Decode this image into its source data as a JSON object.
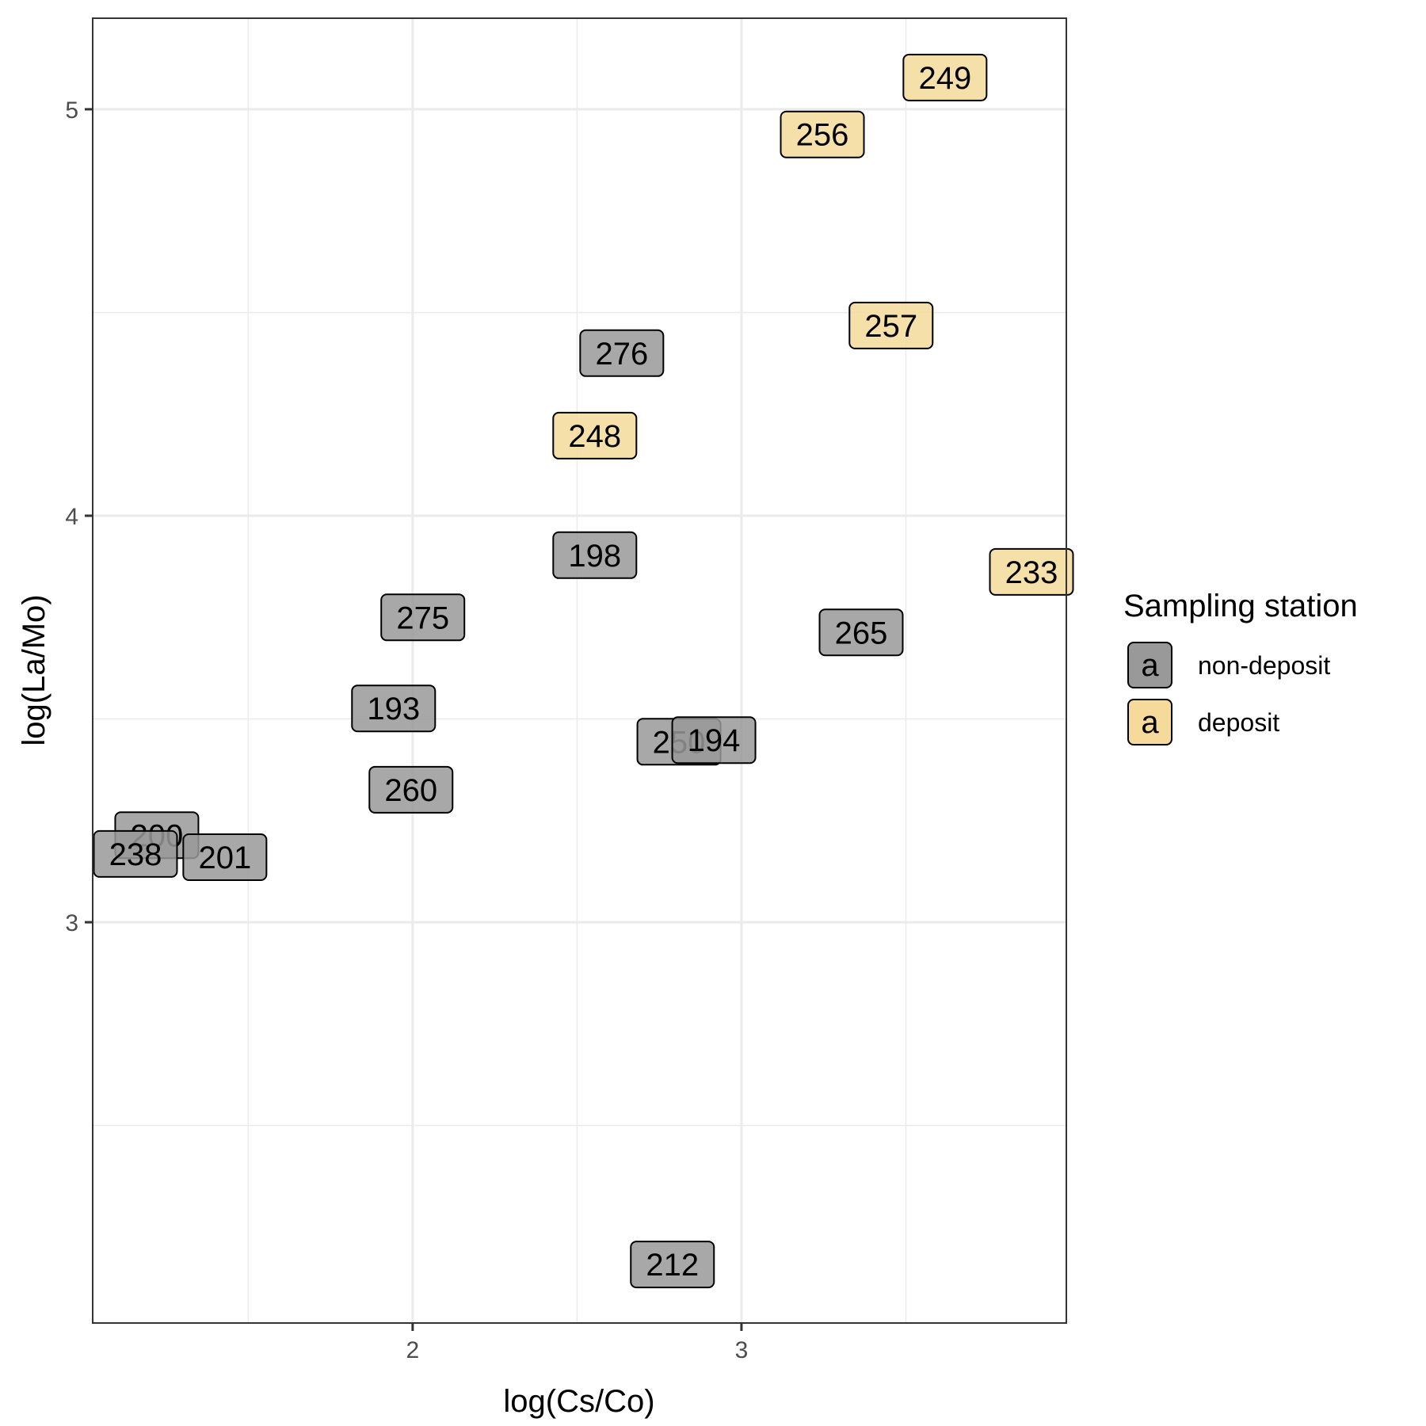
{
  "chart_data": {
    "type": "scatter",
    "title": "",
    "xlabel": "log(Cs/Co)",
    "ylabel": "log(La/Mo)",
    "xlim": [
      1.027,
      3.988
    ],
    "ylim": [
      2.014,
      5.224
    ],
    "x_ticks": [
      2,
      3
    ],
    "y_ticks": [
      3,
      4,
      5
    ],
    "x_minor": [
      1.5,
      2.5,
      3.5
    ],
    "y_minor": [
      2.5,
      3.5,
      4.5
    ],
    "grid": true,
    "legend": {
      "title": "Sampling station",
      "placement": "right",
      "key_glyph": "a",
      "entries": [
        {
          "name": "non-deposit",
          "color": "#999999"
        },
        {
          "name": "deposit",
          "color": "#F5DA9B"
        }
      ]
    },
    "points": [
      {
        "label": "249",
        "x": 3.619,
        "y": 5.078,
        "group": "deposit"
      },
      {
        "label": "256",
        "x": 3.246,
        "y": 4.938,
        "group": "deposit"
      },
      {
        "label": "257",
        "x": 3.455,
        "y": 4.468,
        "group": "deposit"
      },
      {
        "label": "276",
        "x": 2.636,
        "y": 4.4,
        "group": "non-deposit"
      },
      {
        "label": "248",
        "x": 2.554,
        "y": 4.197,
        "group": "deposit"
      },
      {
        "label": "198",
        "x": 2.554,
        "y": 3.903,
        "group": "non-deposit"
      },
      {
        "label": "233",
        "x": 3.882,
        "y": 3.862,
        "group": "deposit"
      },
      {
        "label": "275",
        "x": 2.031,
        "y": 3.75,
        "group": "non-deposit"
      },
      {
        "label": "265",
        "x": 3.364,
        "y": 3.713,
        "group": "non-deposit"
      },
      {
        "label": "250",
        "x": 2.81,
        "y": 3.444,
        "group": "non-deposit"
      },
      {
        "label": "194",
        "x": 2.916,
        "y": 3.448,
        "group": "non-deposit"
      },
      {
        "label": "193",
        "x": 1.942,
        "y": 3.526,
        "group": "non-deposit"
      },
      {
        "label": "260",
        "x": 1.995,
        "y": 3.326,
        "group": "non-deposit"
      },
      {
        "label": "200",
        "x": 1.222,
        "y": 3.214,
        "group": "non-deposit"
      },
      {
        "label": "238",
        "x": 1.157,
        "y": 3.168,
        "group": "non-deposit"
      },
      {
        "label": "201",
        "x": 1.429,
        "y": 3.16,
        "group": "non-deposit"
      },
      {
        "label": "212",
        "x": 2.79,
        "y": 2.158,
        "group": "non-deposit"
      }
    ]
  }
}
